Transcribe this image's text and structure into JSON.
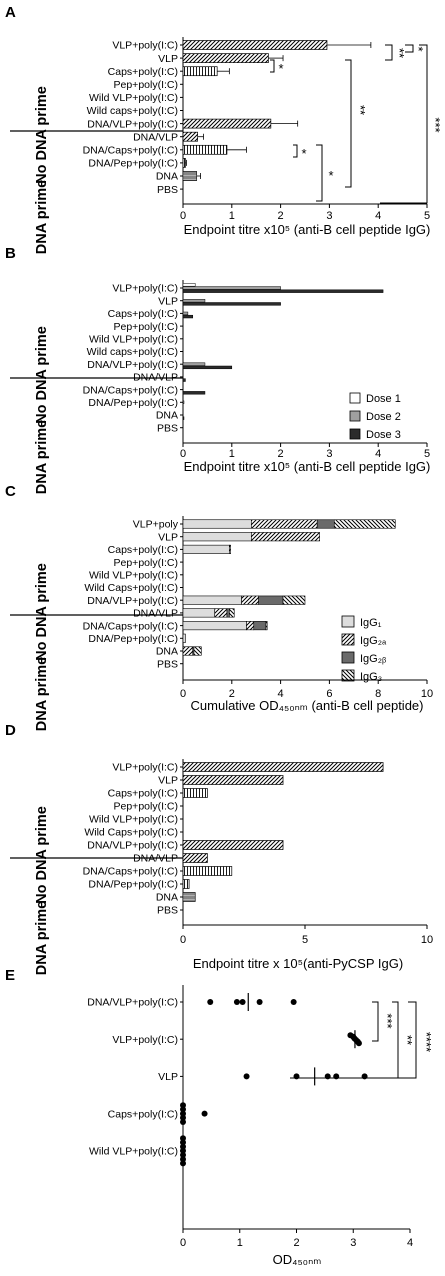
{
  "colors": {
    "ink": "#000000",
    "bg": "#ffffff",
    "dose1": "#ffffff",
    "dose2": "#a0a0a0",
    "dose3": "#2b2b2b",
    "igg1": "#dddddd",
    "igg2b": "#6a6a6a"
  },
  "panels": {
    "A": {
      "letter": "A",
      "xlabel": "Endpoint titre x10⁵ (anti-B cell peptide IgG)",
      "group_top": "No DNA prime",
      "group_bottom": "DNA prime",
      "significance": [
        "*",
        "*",
        "*",
        "**",
        "**",
        "*",
        "*",
        "***"
      ]
    },
    "B": {
      "letter": "B",
      "xlabel": "Endpoint titre x10⁵ (anti-B cell peptide IgG)",
      "group_top": "No DNA prime",
      "group_bottom": "DNA prime",
      "legend": [
        "Dose 1",
        "Dose 2",
        "Dose 3"
      ]
    },
    "C": {
      "letter": "C",
      "xlabel": "Cumulative OD₄₅₀ₙₘ (anti-B cell peptide)",
      "group_top": "No DNA prime",
      "group_bottom": "DNA prime",
      "legend": [
        "IgG₁",
        "IgG₂ₐ",
        "IgG₂ᵦ",
        "IgG₃"
      ]
    },
    "D": {
      "letter": "D",
      "xlabel": "Endpoint titre x 10⁵(anti-PyCSP IgG)",
      "group_top": "No DNA prime",
      "group_bottom": "DNA prime"
    },
    "E": {
      "letter": "E",
      "xlabel": "OD₄₅₀ₙₘ",
      "significance": [
        "***",
        "**",
        "****"
      ]
    }
  },
  "chart_data": [
    {
      "panel": "A",
      "type": "bar",
      "orientation": "horizontal",
      "categories": [
        "VLP+poly(I:C)",
        "VLP",
        "Caps+poly(I:C)",
        "Pep+poly(I:C)",
        "Wild VLP+poly(I:C)",
        "Wild caps+poly(I:C)",
        "DNA/VLP+poly(I:C)",
        "DNA/VLP",
        "DNA/Caps+poly(I:C)",
        "DNA/Pep+poly(I:C)",
        "DNA",
        "PBS"
      ],
      "values": [
        2.95,
        1.75,
        0.7,
        0,
        0,
        0,
        1.8,
        0.3,
        0.9,
        0.05,
        0.28,
        0
      ],
      "errors": [
        0.9,
        0.3,
        0.25,
        0,
        0,
        0,
        0.55,
        0.12,
        0.4,
        0.02,
        0.08,
        0
      ],
      "patterns": [
        "diag",
        "diag",
        "vert",
        "diag",
        "diag",
        "diag",
        "diag",
        "diag",
        "vert",
        "vert",
        "dots",
        "diag"
      ],
      "xlim": [
        0,
        5
      ],
      "xticks": [
        0,
        1,
        2,
        3,
        4,
        5
      ]
    },
    {
      "panel": "B",
      "type": "bar",
      "orientation": "horizontal",
      "categories": [
        "VLP+poly(I:C)",
        "VLP",
        "Caps+poly(I:C)",
        "Pep+poly(I:C)",
        "Wild VLP+poly(I:C)",
        "Wild caps+poly(I:C)",
        "DNA/VLP+poly(I:C)",
        "DNA/VLP",
        "DNA/Caps+poly(I:C)",
        "DNA/Pep+poly(I:C)",
        "DNA",
        "PBS"
      ],
      "series": [
        {
          "name": "Dose 1",
          "values": [
            0.25,
            0,
            0,
            0,
            0,
            0,
            0,
            0,
            0,
            0,
            0,
            0
          ]
        },
        {
          "name": "Dose 2",
          "values": [
            2.0,
            0.45,
            0.1,
            0,
            0,
            0,
            0.45,
            0,
            0,
            0.02,
            0,
            0
          ]
        },
        {
          "name": "Dose 3",
          "values": [
            4.1,
            2.0,
            0.2,
            0,
            0,
            0,
            1.0,
            0.05,
            0.45,
            0,
            0.02,
            0
          ]
        }
      ],
      "xlim": [
        0,
        5
      ],
      "xticks": [
        0,
        1,
        2,
        3,
        4,
        5
      ]
    },
    {
      "panel": "C",
      "type": "bar",
      "orientation": "horizontal",
      "stacked": true,
      "categories": [
        "VLP+poly",
        "VLP",
        "Caps+poly(I:C)",
        "Pep+poly(I:C)",
        "Wild VLP+poly(I:C)",
        "Wild Caps+poly(I:C)",
        "DNA/VLP+poly(I:C)",
        "DNA/VLP",
        "DNA/Caps+poly(I:C)",
        "DNA/Pep+poly(I:C)",
        "DNA",
        "PBS"
      ],
      "series": [
        {
          "name": "IgG₁",
          "values": [
            2.8,
            2.8,
            1.9,
            0,
            0,
            0,
            2.4,
            1.3,
            2.6,
            0.1,
            0,
            0
          ]
        },
        {
          "name": "IgG₂ₐ",
          "values": [
            2.7,
            2.8,
            0.05,
            0,
            0,
            0,
            0.7,
            0.5,
            0.3,
            0,
            0.4,
            0
          ]
        },
        {
          "name": "IgG₂ᵦ",
          "values": [
            0.7,
            0,
            0,
            0,
            0,
            0,
            1.0,
            0.1,
            0.5,
            0,
            0.05,
            0
          ]
        },
        {
          "name": "IgG₃",
          "values": [
            2.5,
            0,
            0,
            0,
            0,
            0,
            0.9,
            0.2,
            0.05,
            0,
            0.3,
            0
          ]
        }
      ],
      "xlim": [
        0,
        10
      ],
      "xticks": [
        0,
        2,
        4,
        6,
        8,
        10
      ]
    },
    {
      "panel": "D",
      "type": "bar",
      "orientation": "horizontal",
      "categories": [
        "VLP+poly(I:C)",
        "VLP",
        "Caps+poly(I:C)",
        "Pep+poly(I:C)",
        "Wild VLP+poly(I:C)",
        "Wild Caps+poly(I:C)",
        "DNA/VLP+poly(I:C)",
        "DNA/VLP",
        "DNA/Caps+poly(I:C)",
        "DNA/Pep+poly(I:C)",
        "DNA",
        "PBS"
      ],
      "values": [
        8.2,
        4.1,
        1.0,
        0,
        0,
        0,
        4.1,
        1.0,
        2.0,
        0.25,
        0.5,
        0
      ],
      "patterns": [
        "diag",
        "diag",
        "vert",
        "diag",
        "diag",
        "diag",
        "diag",
        "diag",
        "vert",
        "vert",
        "dots",
        "diag"
      ],
      "xlim": [
        0,
        10
      ],
      "xticks": [
        0,
        5,
        10
      ]
    },
    {
      "panel": "E",
      "type": "scatter",
      "categories": [
        "DNA/VLP+poly(I:C)",
        "VLP+poly(I:C)",
        "VLP",
        "Caps+poly(I:C)",
        "Wild VLP+poly(I:C)"
      ],
      "points": [
        [
          0.48,
          0.95,
          1.05,
          1.35,
          1.95
        ],
        [
          2.95,
          3.0,
          3.02,
          3.05,
          3.08,
          3.1
        ],
        [
          1.12,
          2.0,
          2.55,
          2.7,
          3.2
        ],
        [
          0,
          0,
          0,
          0,
          0,
          0.38
        ],
        [
          0,
          0,
          0,
          0,
          0,
          0,
          0
        ]
      ],
      "means": [
        1.15,
        3.03,
        2.32,
        0.06,
        0
      ],
      "xlim": [
        0,
        4
      ],
      "xticks": [
        0,
        1,
        2,
        3,
        4
      ]
    }
  ]
}
